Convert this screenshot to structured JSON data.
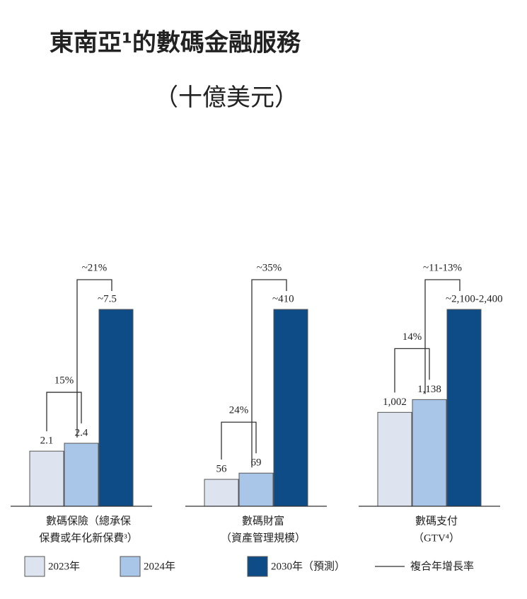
{
  "title": "東南亞¹的數碼金融服務",
  "subtitle": "（十億美元）",
  "legend": {
    "series": [
      {
        "name": "2023年",
        "color": "#dde4ef"
      },
      {
        "name": "2024年",
        "color": "#a9c6e8"
      },
      {
        "name": "2030年（預測）",
        "color": "#0d4c87"
      }
    ],
    "growth_label": "複合年增長率"
  },
  "chart_data": [
    {
      "type": "bar",
      "x_label": [
        "數碼保險（總承保",
        "保費或年化新保費³）"
      ],
      "values": [
        2.1,
        2.4,
        7.5
      ],
      "value_labels": [
        "2.1",
        "2.4",
        "~7.5"
      ],
      "growth_labels": [
        "15%",
        "~21%"
      ]
    },
    {
      "type": "bar",
      "x_label": [
        "數碼財富",
        "（資產管理規模）"
      ],
      "values": [
        56,
        69,
        410
      ],
      "value_labels": [
        "56",
        "69",
        "~410"
      ],
      "growth_labels": [
        "24%",
        "~35%"
      ]
    },
    {
      "type": "bar",
      "x_label": [
        "數碼支付",
        "（GTV⁴）"
      ],
      "values": [
        1002,
        1138,
        2100
      ],
      "value_labels": [
        "1,002",
        "1,138",
        "~2,100-2,400"
      ],
      "growth_labels": [
        "14%",
        "~11-13%"
      ]
    }
  ]
}
